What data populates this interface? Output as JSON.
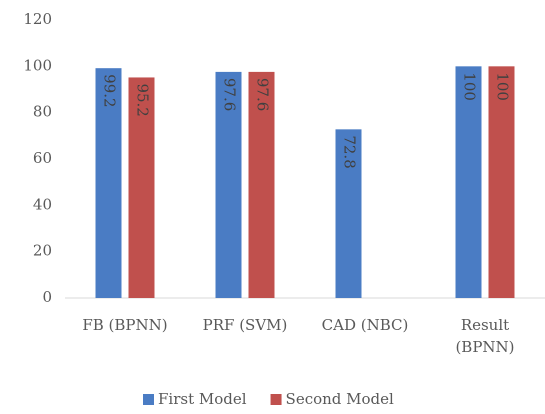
{
  "chart_data": {
    "type": "bar",
    "categories": [
      "FB (BPNN)",
      "PRF (SVM)",
      "CAD (NBC)",
      "Result (BPNN)"
    ],
    "series": [
      {
        "name": "First Model",
        "color": "#4a7cc4",
        "values": [
          99.2,
          97.6,
          72.8,
          100
        ]
      },
      {
        "name": "Second Model",
        "color": "#c0504d",
        "values": [
          95.2,
          97.6,
          null,
          100
        ]
      }
    ],
    "ylim": [
      0,
      120
    ],
    "yticks": [
      0,
      20,
      40,
      60,
      80,
      100,
      120
    ],
    "grid": false,
    "legend": "bottom"
  }
}
